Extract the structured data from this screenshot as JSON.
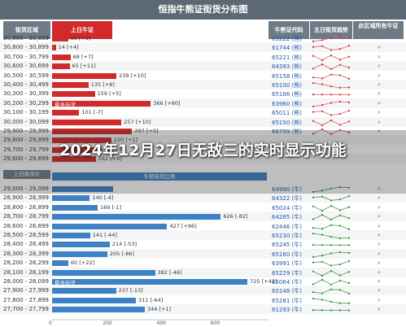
{
  "header": {
    "title": "恒指牛熊证街货分布图"
  },
  "columns": {
    "range": "街货区域",
    "bull": "上日牛证",
    "cert": "牛熊证代码",
    "trend": "五日街货趋势",
    "dist": "此区域所有牛证"
  },
  "headline": "2024年12月27日无敌三的实时显示功能",
  "midband": {
    "left_label": "上日收市价",
    "center_label": "牛熊街货比例"
  },
  "colors": {
    "bull": "#d22a2a",
    "bear": "#3d82c4",
    "header": "#6d7b87",
    "title": "#5c6873"
  },
  "chart_data": {
    "type": "bar",
    "title": "恒指牛熊证街货分布图",
    "xlabel": "",
    "ylabel": "",
    "xlim": [
      0,
      800
    ],
    "x_ticks": [
      "0",
      "200",
      "400",
      "600"
    ],
    "bull_section": {
      "categories": [
        "30,900 - 30,999",
        "30,800 - 30,899",
        "30,700 - 30,799",
        "30,600 - 30,699",
        "30,500 - 30,599",
        "30,400 - 30,499",
        "30,300 - 30,399",
        "30,200 - 30,299",
        "30,100 - 30,199",
        "30,000 - 30,099",
        "29,900 - 29,999",
        "29,800 - 29,899",
        "29,700 - 29,799",
        "29,600 - 29,699"
      ],
      "values": [
        59,
        14,
        68,
        65,
        239,
        135,
        159,
        366,
        101,
        257,
        297,
        220,
        171,
        162
      ],
      "labels": [
        "59 [+1]",
        "14 [+4]",
        "68 [+7]",
        "65 [+11]",
        "239 [+10]",
        "135 [+8]",
        "159 [+5]",
        "366 [+60]",
        "101 [-7]",
        "257 [+10]",
        "297 [+5]",
        "220 [+1]",
        "171 [+8]",
        "162 [+8]"
      ],
      "codes": [
        "65222 (熊)",
        "61744 (熊)",
        "65221 (熊)",
        "64393 (熊)",
        "65158 (熊)",
        "65100 (熊)",
        "65166 (熊)",
        "63960 (熊)",
        "65011 (熊)",
        "65150 (熊)",
        "66799 (熊)",
        "",
        "",
        ""
      ],
      "highlight_label": "最多街货"
    },
    "bear_section": {
      "categories": [
        "29,000 - 29,099",
        "28,900 - 28,999",
        "28,800 - 28,899",
        "28,700 - 28,799",
        "28,600 - 28,699",
        "28,500 - 28,599",
        "28,400 - 28,499",
        "28,300 - 28,399",
        "28,200 - 28,299",
        "28,100 - 28,199",
        "28,000 - 28,099",
        "27,900 - 27,999",
        "27,800 - 27,899",
        "27,700 - 27,799"
      ],
      "values": [
        226,
        140,
        169,
        626,
        427,
        141,
        214,
        205,
        60,
        382,
        725,
        237,
        311,
        344
      ],
      "labels": [
        "",
        "140 [-4]",
        "169 [-1]",
        "626 [-82]",
        "427 [+96]",
        "141 [-44]",
        "214 [-53]",
        "205 [-86]",
        "60 [+22]",
        "382 [-46]",
        "725 [+42]",
        "237 [-13]",
        "311 [-64]",
        "344 [+1]"
      ],
      "codes": [
        "64990 (牛)",
        "64322 (牛)",
        "65024 (牛)",
        "64285 (牛)",
        "62446 (牛)",
        "65230 (牛)",
        "65245 (牛)",
        "65160 (牛)",
        "63991 (牛)",
        "65229 (牛)",
        "65064 (牛)",
        "60148 (牛)",
        "65281 (牛)",
        "61293 (牛)"
      ],
      "highlight_label": "最多街货"
    }
  }
}
